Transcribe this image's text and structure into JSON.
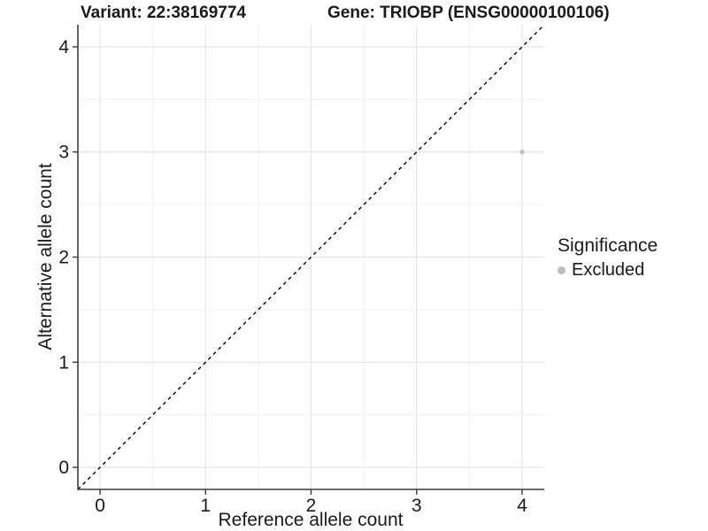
{
  "title": {
    "variant": "Variant: 22:38169774",
    "gene": "Gene: TRIOBP (ENSG00000100106)"
  },
  "axes": {
    "x_label": "Reference allele count",
    "y_label": "Alternative allele count"
  },
  "legend": {
    "title": "Significance",
    "items": [
      {
        "label": "Excluded",
        "color": "#bdbdbd"
      }
    ]
  },
  "chart_data": {
    "type": "scatter",
    "title": "Variant: 22:38169774   Gene: TRIOBP (ENSG00000100106)",
    "xlabel": "Reference allele count",
    "ylabel": "Alternative allele count",
    "xlim": [
      -0.21,
      4.21
    ],
    "ylim": [
      -0.21,
      4.21
    ],
    "x_ticks": [
      0,
      1,
      2,
      3,
      4
    ],
    "y_ticks": [
      0,
      1,
      2,
      3,
      4
    ],
    "x_minor_ticks": [
      0.5,
      1.5,
      2.5,
      3.5
    ],
    "y_minor_ticks": [
      0.5,
      1.5,
      2.5,
      3.5
    ],
    "grid": true,
    "legend_position": "right",
    "series": [
      {
        "name": "Excluded",
        "type": "scatter",
        "color": "#bdbdbd",
        "points": [
          {
            "x": 4,
            "y": 3
          }
        ]
      }
    ],
    "reference_line": {
      "type": "identity",
      "slope": 1,
      "intercept": 0,
      "style": "dashed",
      "color": "#000000"
    }
  },
  "colors": {
    "background": "#ffffff",
    "grid_major": "#e3e3e3",
    "grid_minor": "#f1f1f1",
    "axis_line": "#3d3d3d",
    "text": "#1a1a1a",
    "point": "#bdbdbd"
  }
}
